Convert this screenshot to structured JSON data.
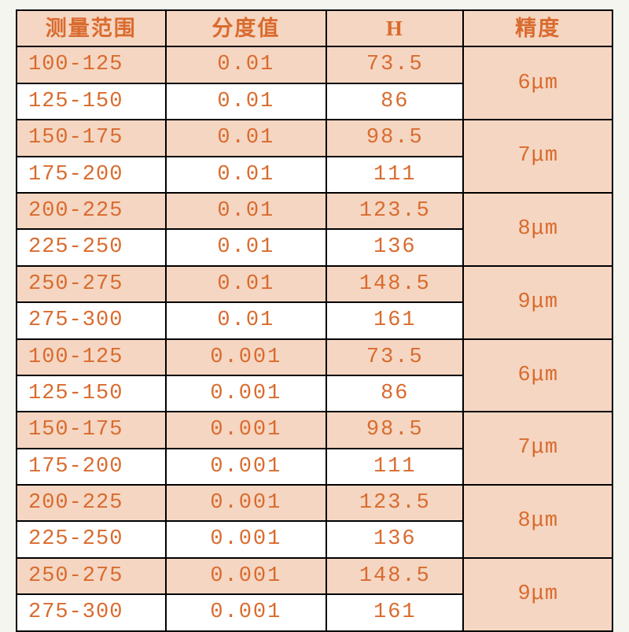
{
  "table": {
    "type": "table",
    "header_bg": "#f5d6c2",
    "shaded_bg": "#f5d6c2",
    "plain_bg": "#ffffff",
    "text_color": "#d96b2e",
    "border_color": "#000000",
    "font_family": "SimSun, Courier New",
    "header_fontsize": 27,
    "cell_fontsize": 27,
    "columns": [
      {
        "key": "range",
        "label": "测量范围",
        "align": "left",
        "width_pct": 25
      },
      {
        "key": "division",
        "label": "分度值",
        "align": "center",
        "width_pct": 27
      },
      {
        "key": "h",
        "label": "H",
        "align": "center",
        "width_pct": 23
      },
      {
        "key": "precision",
        "label": "精度",
        "align": "center",
        "width_pct": 25
      }
    ],
    "groups": [
      {
        "precision": "6μm",
        "rows": [
          {
            "range": "100-125",
            "division": "0.01",
            "h": "73.5",
            "shaded": true
          },
          {
            "range": "125-150",
            "division": "0.01",
            "h": "86",
            "shaded": false
          }
        ]
      },
      {
        "precision": "7μm",
        "rows": [
          {
            "range": "150-175",
            "division": "0.01",
            "h": "98.5",
            "shaded": true
          },
          {
            "range": "175-200",
            "division": "0.01",
            "h": "111",
            "shaded": false
          }
        ]
      },
      {
        "precision": "8μm",
        "rows": [
          {
            "range": "200-225",
            "division": "0.01",
            "h": "123.5",
            "shaded": true
          },
          {
            "range": "225-250",
            "division": "0.01",
            "h": "136",
            "shaded": false
          }
        ]
      },
      {
        "precision": "9μm",
        "rows": [
          {
            "range": "250-275",
            "division": "0.01",
            "h": "148.5",
            "shaded": true
          },
          {
            "range": "275-300",
            "division": "0.01",
            "h": "161",
            "shaded": false
          }
        ]
      },
      {
        "precision": "6μm",
        "rows": [
          {
            "range": "100-125",
            "division": "0.001",
            "h": "73.5",
            "shaded": true
          },
          {
            "range": "125-150",
            "division": "0.001",
            "h": "86",
            "shaded": false
          }
        ]
      },
      {
        "precision": "7μm",
        "rows": [
          {
            "range": "150-175",
            "division": "0.001",
            "h": "98.5",
            "shaded": true
          },
          {
            "range": "175-200",
            "division": "0.001",
            "h": "111",
            "shaded": false
          }
        ]
      },
      {
        "precision": "8μm",
        "rows": [
          {
            "range": "200-225",
            "division": "0.001",
            "h": "123.5",
            "shaded": true
          },
          {
            "range": "225-250",
            "division": "0.001",
            "h": "136",
            "shaded": false
          }
        ]
      },
      {
        "precision": "9μm",
        "rows": [
          {
            "range": "250-275",
            "division": "0.001",
            "h": "148.5",
            "shaded": true
          },
          {
            "range": "275-300",
            "division": "0.001",
            "h": "161",
            "shaded": false
          }
        ]
      }
    ]
  }
}
